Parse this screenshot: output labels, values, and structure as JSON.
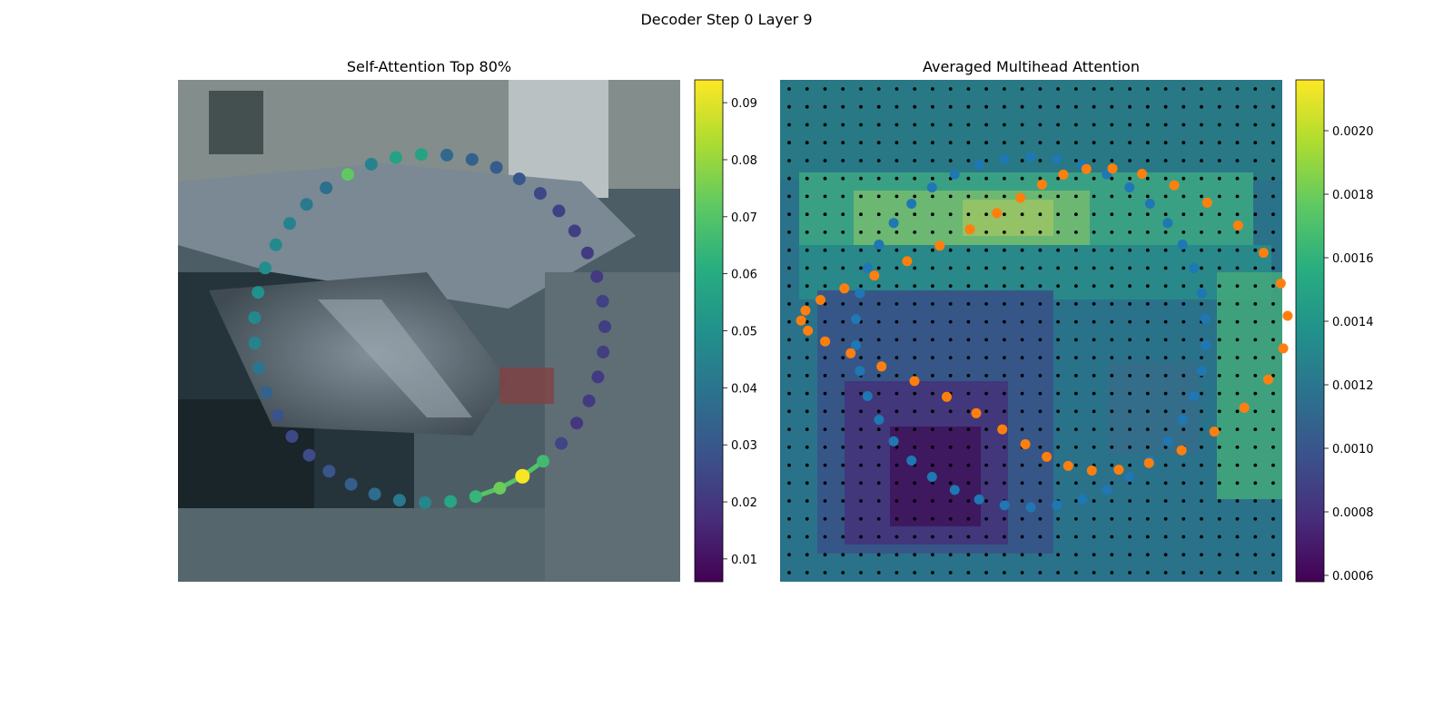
{
  "suptitle": "Decoder Step 0 Layer 9",
  "panels": {
    "left": {
      "title": "Self-Attention Top 80%"
    },
    "right": {
      "title": "Averaged Multihead Attention"
    }
  },
  "colorbars": {
    "left": {
      "ticks": [
        "0.01",
        "0.02",
        "0.03",
        "0.04",
        "0.05",
        "0.06",
        "0.07",
        "0.08",
        "0.09"
      ],
      "range": [
        0.006,
        0.094
      ]
    },
    "right": {
      "ticks": [
        "0.0006",
        "0.0008",
        "0.0010",
        "0.0012",
        "0.0014",
        "0.0016",
        "0.0018",
        "0.0020"
      ],
      "range": [
        0.00058,
        0.00216
      ]
    }
  },
  "colors": {
    "series_blue": "#1f77b4",
    "series_orange": "#ff7f0e",
    "grid_dot": "#000000"
  },
  "chart_data": [
    {
      "type": "scatter",
      "title": "Self-Attention Top 80%",
      "note_values": "point colour values on the colorbar scale, ordered around the ring",
      "values": [
        0.093,
        0.074,
        0.064,
        0.058,
        0.046,
        0.041,
        0.037,
        0.032,
        0.029,
        0.026,
        0.025,
        0.028,
        0.034,
        0.04,
        0.045,
        0.047,
        0.05,
        0.049,
        0.047,
        0.045,
        0.042,
        0.038,
        0.072,
        0.045,
        0.056,
        0.057,
        0.036,
        0.033,
        0.031,
        0.03,
        0.025,
        0.023,
        0.022,
        0.021,
        0.021,
        0.023,
        0.022,
        0.022,
        0.021,
        0.021,
        0.02,
        0.024,
        0.066
      ]
    },
    {
      "type": "heatmap",
      "title": "Averaged Multihead Attention",
      "grid": [
        28,
        28
      ],
      "series": [
        {
          "name": "",
          "color": "#1f77b4",
          "count": 42
        },
        {
          "name": "",
          "color": "#ff7f0e",
          "count": 40
        }
      ]
    }
  ]
}
